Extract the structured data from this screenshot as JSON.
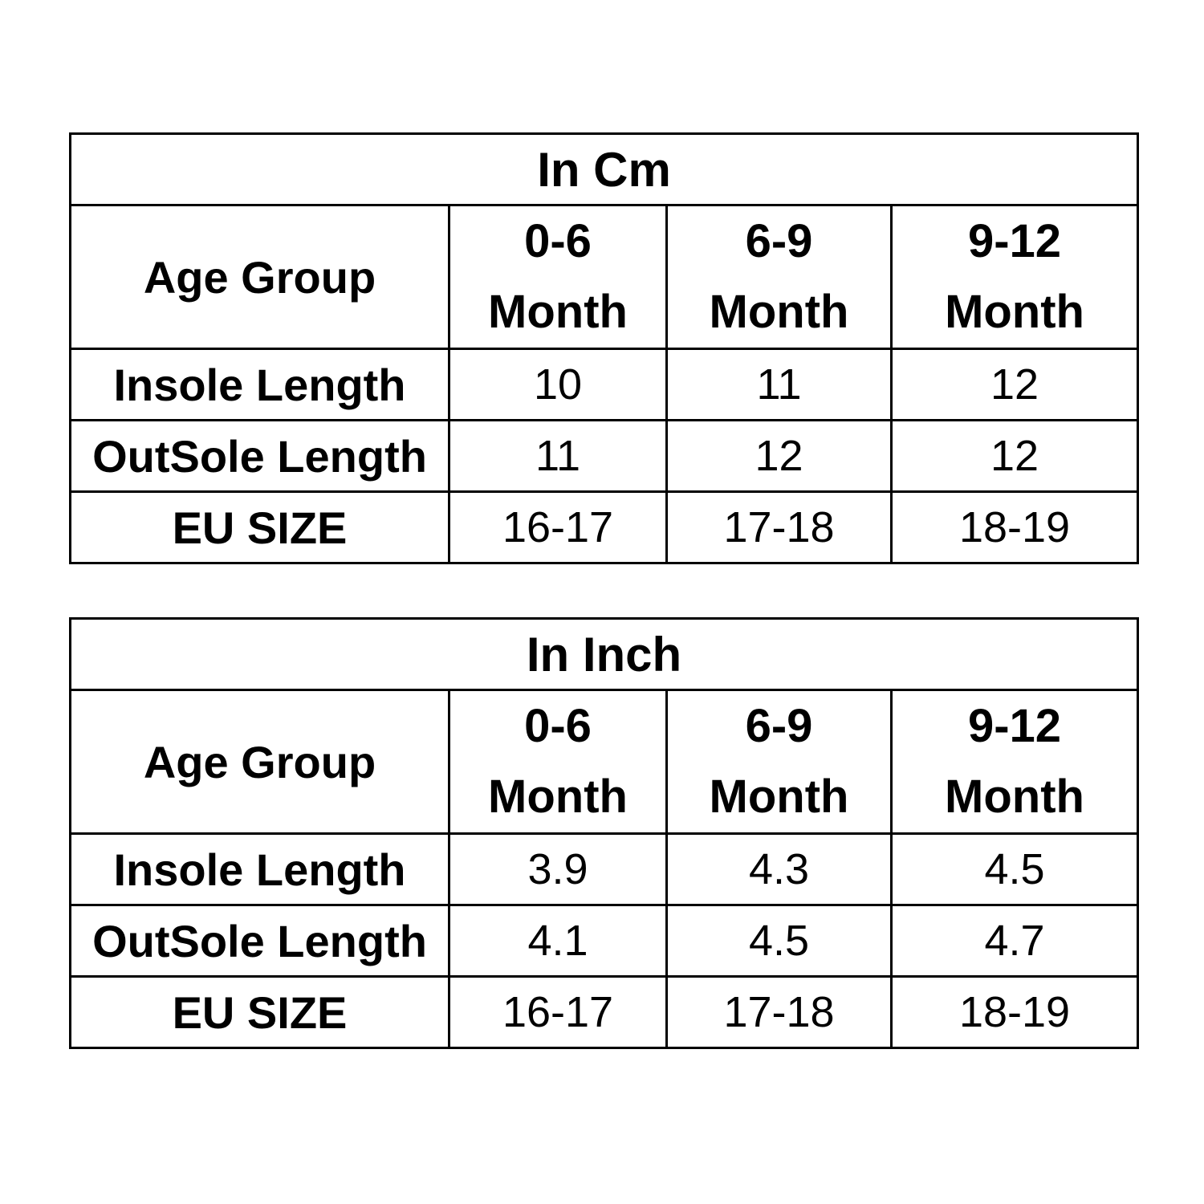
{
  "tables": [
    {
      "title": "In Cm",
      "header_label": "Age Group",
      "groups": [
        {
          "range": "0-6",
          "unit": "Month"
        },
        {
          "range": "6-9",
          "unit": "Month"
        },
        {
          "range": "9-12",
          "unit": "Month"
        }
      ],
      "rows": [
        {
          "label": "Insole Length",
          "values": [
            "10",
            "11",
            "12"
          ]
        },
        {
          "label": "OutSole Length",
          "values": [
            "11",
            "12",
            "12"
          ]
        },
        {
          "label": "EU SIZE",
          "values": [
            "16-17",
            "17-18",
            "18-19"
          ]
        }
      ]
    },
    {
      "title": "In Inch",
      "header_label": "Age Group",
      "groups": [
        {
          "range": "0-6",
          "unit": "Month"
        },
        {
          "range": "6-9",
          "unit": "Month"
        },
        {
          "range": "9-12",
          "unit": "Month"
        }
      ],
      "rows": [
        {
          "label": "Insole Length",
          "values": [
            "3.9",
            "4.3",
            "4.5"
          ]
        },
        {
          "label": "OutSole Length",
          "values": [
            "4.1",
            "4.5",
            "4.7"
          ]
        },
        {
          "label": "EU SIZE",
          "values": [
            "16-17",
            "17-18",
            "18-19"
          ]
        }
      ]
    }
  ]
}
